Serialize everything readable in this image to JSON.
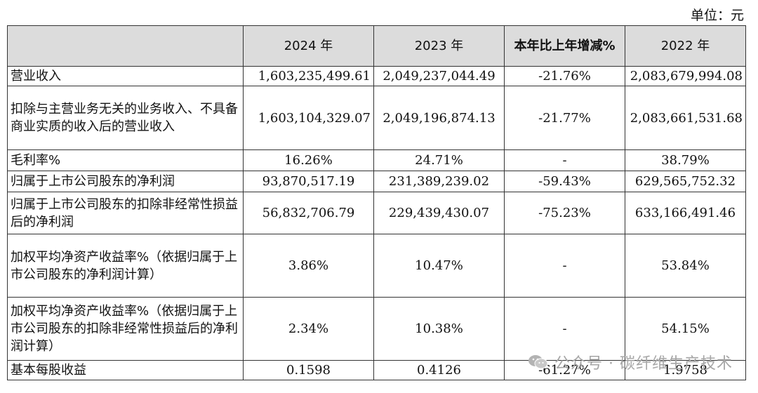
{
  "unit_label": "单位：元",
  "table": {
    "headers": [
      "",
      "2024 年",
      "2023 年",
      "本年比上年增减%",
      "2022 年"
    ],
    "rows": [
      {
        "label": "营业收入",
        "v2024": "1,603,235,499.61",
        "v2023": "2,049,237,044.49",
        "change": "-21.76%",
        "v2022": "2,083,679,994.08"
      },
      {
        "label": "扣除与主营业务无关的业务收入、不具备商业实质的收入后的营业收入",
        "v2024": "1,603,104,329.07",
        "v2023": "2,049,196,874.13",
        "change": "-21.77%",
        "v2022": "2,083,661,531.68"
      },
      {
        "label": "毛利率%",
        "v2024": "16.26%",
        "v2023": "24.71%",
        "change": "-",
        "v2022": "38.79%"
      },
      {
        "label": "归属于上市公司股东的净利润",
        "v2024": "93,870,517.19",
        "v2023": "231,389,239.02",
        "change": "-59.43%",
        "v2022": "629,565,752.32"
      },
      {
        "label": "归属于上市公司股东的扣除非经常性损益后的净利润",
        "v2024": "56,832,706.79",
        "v2023": "229,439,430.07",
        "change": "-75.23%",
        "v2022": "633,166,491.46"
      },
      {
        "label": "加权平均净资产收益率%（依据归属于上市公司股东的净利润计算）",
        "v2024": "3.86%",
        "v2023": "10.47%",
        "change": "-",
        "v2022": "53.84%"
      },
      {
        "label": "加权平均净资产收益率%（依据归属于上市公司股东的扣除非经常性损益后的净利润计算）",
        "v2024": "2.34%",
        "v2023": "10.38%",
        "change": "-",
        "v2022": "54.15%"
      },
      {
        "label": "基本每股收益",
        "v2024": "0.1598",
        "v2023": "0.4126",
        "change": "-61.27%",
        "v2022": "1.9758"
      }
    ]
  },
  "watermark": {
    "text": "公众号 · 碳纤维生产技术",
    "icon": "wechat-icon"
  }
}
